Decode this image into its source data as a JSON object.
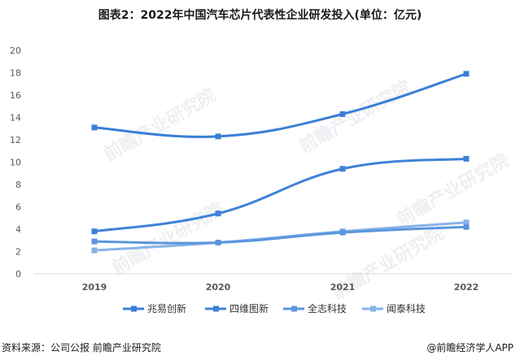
{
  "title": "图表2：2022年中国汽车芯片代表性企业研发投入(单位：亿元)",
  "source": "资料来源：公司公报 前瞻产业研究院",
  "brand": "@前瞻经济学人APP",
  "watermark": "前瞻产业研究院",
  "chart_data": {
    "type": "line",
    "title": "图表2：2022年中国汽车芯片代表性企业研发投入(单位：亿元)",
    "categories": [
      "2019",
      "2020",
      "2021",
      "2022"
    ],
    "y_ticks": [
      "0",
      "2",
      "4",
      "6",
      "8",
      "10",
      "12",
      "14",
      "16",
      "18",
      "20"
    ],
    "ylim": [
      0,
      20
    ],
    "grid": false,
    "legend_position": "bottom",
    "smooth": true,
    "series": [
      {
        "name": "兆易创新",
        "values": [
          13.1,
          12.3,
          14.3,
          17.9
        ],
        "color": "#3a7fd5"
      },
      {
        "name": "四维图新",
        "values": [
          3.8,
          5.4,
          9.4,
          10.3
        ],
        "color": "#3f82d8"
      },
      {
        "name": "全志科技",
        "values": [
          2.9,
          2.8,
          3.7,
          4.2
        ],
        "color": "#5a96dd"
      },
      {
        "name": "闻泰科技",
        "values": [
          2.1,
          2.8,
          3.8,
          4.6
        ],
        "color": "#86b3e8"
      }
    ]
  }
}
